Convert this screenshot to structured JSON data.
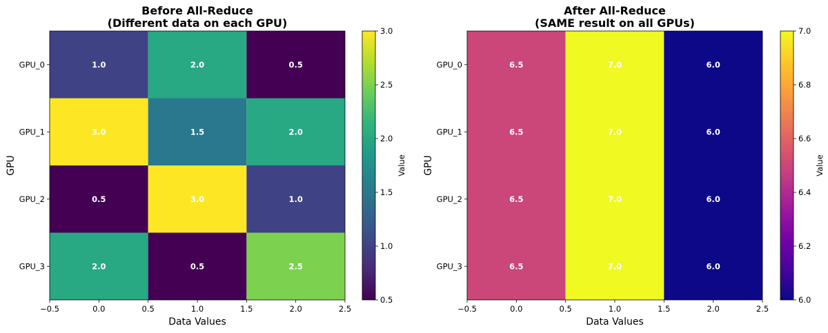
{
  "chart_data": [
    {
      "type": "heatmap",
      "title": "Before All-Reduce\n(Different data on each GPU)",
      "xlabel": "Data Values",
      "ylabel": "GPU",
      "rows": [
        "GPU_0",
        "GPU_1",
        "GPU_2",
        "GPU_3"
      ],
      "columns": [
        0,
        1,
        2
      ],
      "values": [
        [
          1.0,
          2.0,
          0.5
        ],
        [
          3.0,
          1.5,
          2.0
        ],
        [
          0.5,
          3.0,
          1.0
        ],
        [
          2.0,
          0.5,
          2.5
        ]
      ],
      "cell_labels": [
        [
          "1.0",
          "2.0",
          "0.5"
        ],
        [
          "3.0",
          "1.5",
          "2.0"
        ],
        [
          "0.5",
          "3.0",
          "1.0"
        ],
        [
          "2.0",
          "0.5",
          "2.5"
        ]
      ],
      "xlim": [
        -0.5,
        2.5
      ],
      "xticks": [
        -0.5,
        0.0,
        0.5,
        1.0,
        1.5,
        2.0,
        2.5
      ],
      "xtick_labels": [
        "−0.5",
        "0.0",
        "0.5",
        "1.0",
        "1.5",
        "2.0",
        "2.5"
      ],
      "colormap": "viridis",
      "colorbar": {
        "label": "Value",
        "range": [
          0.5,
          3.0
        ],
        "ticks": [
          0.5,
          1.0,
          1.5,
          2.0,
          2.5,
          3.0
        ],
        "tick_labels": [
          "0.5",
          "1.0",
          "1.5",
          "2.0",
          "2.5",
          "3.0"
        ]
      },
      "grid": false
    },
    {
      "type": "heatmap",
      "title": "After All-Reduce\n(SAME result on all GPUs)",
      "xlabel": "Data Values",
      "ylabel": "GPU",
      "rows": [
        "GPU_0",
        "GPU_1",
        "GPU_2",
        "GPU_3"
      ],
      "columns": [
        0,
        1,
        2
      ],
      "values": [
        [
          6.5,
          7.0,
          6.0
        ],
        [
          6.5,
          7.0,
          6.0
        ],
        [
          6.5,
          7.0,
          6.0
        ],
        [
          6.5,
          7.0,
          6.0
        ]
      ],
      "cell_labels": [
        [
          "6.5",
          "7.0",
          "6.0"
        ],
        [
          "6.5",
          "7.0",
          "6.0"
        ],
        [
          "6.5",
          "7.0",
          "6.0"
        ],
        [
          "6.5",
          "7.0",
          "6.0"
        ]
      ],
      "xlim": [
        -0.5,
        2.5
      ],
      "xticks": [
        -0.5,
        0.0,
        0.5,
        1.0,
        1.5,
        2.0,
        2.5
      ],
      "xtick_labels": [
        "−0.5",
        "0.0",
        "0.5",
        "1.0",
        "1.5",
        "2.0",
        "2.5"
      ],
      "colormap": "plasma",
      "colorbar": {
        "label": "Value",
        "range": [
          6.0,
          7.0
        ],
        "ticks": [
          6.0,
          6.2,
          6.4,
          6.6,
          6.8,
          7.0
        ],
        "tick_labels": [
          "6.0",
          "6.2",
          "6.4",
          "6.6",
          "6.8",
          "7.0"
        ]
      },
      "grid": false
    }
  ]
}
